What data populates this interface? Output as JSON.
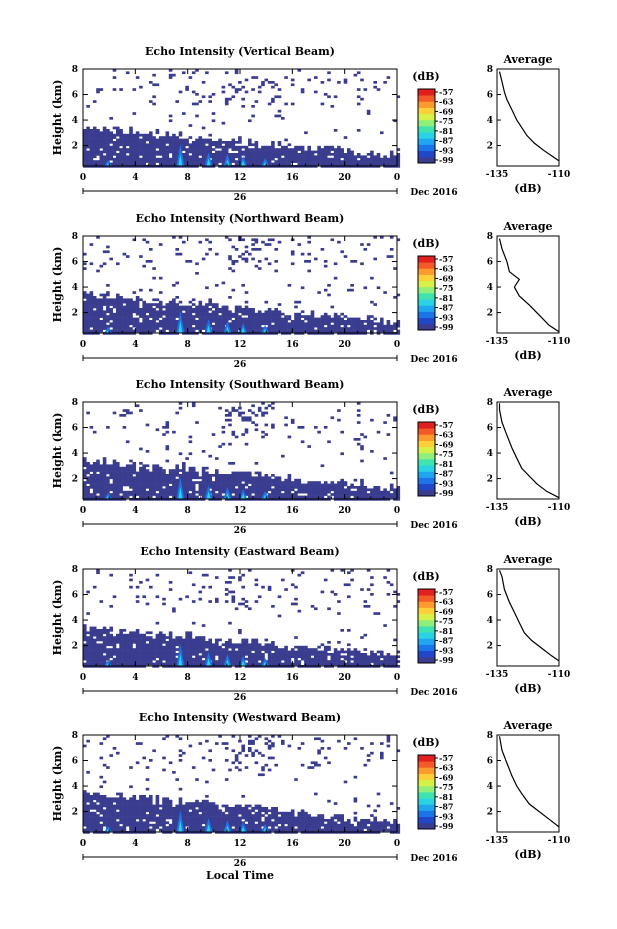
{
  "figure": {
    "time_label": "Local Time",
    "date_label": "Dec 2016",
    "day_label": "26",
    "height_label": "Height (km)",
    "colorbar_unit": "(dB)",
    "colorbar_ticks": [
      "-57",
      "-63",
      "-69",
      "-75",
      "-81",
      "-87",
      "-93",
      "-99"
    ],
    "avg_title": "Average",
    "avg_xlabel": "(dB)",
    "avg_xticks": [
      "-135",
      "-110"
    ],
    "palette": [
      "#3a3d8f",
      "#2246c8",
      "#1b74e8",
      "#20a6f0",
      "#2ad3e4",
      "#3fe3b0",
      "#8ef07a",
      "#d8f04a",
      "#fdd03a",
      "#fd9a2e",
      "#f35a27",
      "#e21f1f"
    ]
  },
  "chart_data": [
    {
      "type": "heatmap",
      "title": "Echo Intensity (Vertical Beam)",
      "x_ticks": [
        "0",
        "4",
        "8",
        "12",
        "16",
        "20",
        "0"
      ],
      "y_ticks": [
        "2",
        "4",
        "6",
        "8"
      ],
      "xlim": [
        0,
        24
      ],
      "ylim": [
        0.4,
        8
      ],
      "colorbar_range": [
        -99,
        -57
      ],
      "average_profile": {
        "xlim": [
          -135,
          -110
        ],
        "ylim": [
          0.4,
          8
        ],
        "points": [
          [
            -110,
            0.8
          ],
          [
            -113,
            1.2
          ],
          [
            -116,
            1.6
          ],
          [
            -120,
            2.2
          ],
          [
            -123,
            2.8
          ],
          [
            -125,
            3.4
          ],
          [
            -127,
            4.0
          ],
          [
            -129,
            4.8
          ],
          [
            -131,
            5.6
          ],
          [
            -132,
            6.2
          ],
          [
            -133,
            7.0
          ],
          [
            -134,
            7.8
          ]
        ]
      }
    },
    {
      "type": "heatmap",
      "title": "Echo Intensity (Northward Beam)",
      "x_ticks": [
        "0",
        "4",
        "8",
        "12",
        "16",
        "20",
        "0"
      ],
      "y_ticks": [
        "2",
        "4",
        "6",
        "8"
      ],
      "xlim": [
        0,
        24
      ],
      "ylim": [
        0.4,
        8
      ],
      "colorbar_range": [
        -99,
        -57
      ],
      "average_profile": {
        "xlim": [
          -135,
          -110
        ],
        "ylim": [
          0.4,
          8
        ],
        "points": [
          [
            -110,
            0.5
          ],
          [
            -114,
            1.0
          ],
          [
            -118,
            1.8
          ],
          [
            -122,
            2.6
          ],
          [
            -126,
            3.3
          ],
          [
            -128,
            4.0
          ],
          [
            -126,
            4.6
          ],
          [
            -130,
            5.2
          ],
          [
            -131,
            6.0
          ],
          [
            -133,
            7.0
          ],
          [
            -134,
            7.8
          ]
        ]
      }
    },
    {
      "type": "heatmap",
      "title": "Echo Intensity (Southward Beam)",
      "x_ticks": [
        "0",
        "4",
        "8",
        "12",
        "16",
        "20",
        "0"
      ],
      "y_ticks": [
        "2",
        "4",
        "6",
        "8"
      ],
      "xlim": [
        0,
        24
      ],
      "ylim": [
        0.4,
        8
      ],
      "colorbar_range": [
        -99,
        -57
      ],
      "average_profile": {
        "xlim": [
          -135,
          -110
        ],
        "ylim": [
          0.4,
          8
        ],
        "points": [
          [
            -110,
            0.5
          ],
          [
            -115,
            1.0
          ],
          [
            -119,
            1.6
          ],
          [
            -122,
            2.2
          ],
          [
            -125,
            2.8
          ],
          [
            -127,
            3.6
          ],
          [
            -129,
            4.4
          ],
          [
            -131,
            5.4
          ],
          [
            -133,
            6.4
          ],
          [
            -134,
            7.4
          ],
          [
            -134,
            7.9
          ]
        ]
      }
    },
    {
      "type": "heatmap",
      "title": "Echo Intensity (Eastward Beam)",
      "x_ticks": [
        "0",
        "4",
        "8",
        "12",
        "16",
        "20",
        "0"
      ],
      "y_ticks": [
        "2",
        "4",
        "6",
        "8"
      ],
      "xlim": [
        0,
        24
      ],
      "ylim": [
        0.4,
        8
      ],
      "colorbar_range": [
        -99,
        -57
      ],
      "average_profile": {
        "xlim": [
          -135,
          -110
        ],
        "ylim": [
          0.4,
          8
        ],
        "points": [
          [
            -110,
            0.8
          ],
          [
            -113,
            1.2
          ],
          [
            -117,
            1.8
          ],
          [
            -121,
            2.4
          ],
          [
            -124,
            3.0
          ],
          [
            -126,
            3.8
          ],
          [
            -128,
            4.6
          ],
          [
            -130,
            5.4
          ],
          [
            -132,
            6.4
          ],
          [
            -133,
            7.4
          ],
          [
            -134,
            7.9
          ]
        ]
      }
    },
    {
      "type": "heatmap",
      "title": "Echo Intensity (Westward Beam)",
      "x_ticks": [
        "0",
        "4",
        "8",
        "12",
        "16",
        "20",
        "0"
      ],
      "y_ticks": [
        "2",
        "4",
        "6",
        "8"
      ],
      "xlim": [
        0,
        24
      ],
      "ylim": [
        0.4,
        8
      ],
      "colorbar_range": [
        -99,
        -57
      ],
      "average_profile": {
        "xlim": [
          -135,
          -110
        ],
        "ylim": [
          0.4,
          8
        ],
        "points": [
          [
            -110,
            0.8
          ],
          [
            -114,
            1.4
          ],
          [
            -118,
            2.0
          ],
          [
            -122,
            2.6
          ],
          [
            -125,
            3.4
          ],
          [
            -127,
            4.0
          ],
          [
            -129,
            4.8
          ],
          [
            -131,
            5.8
          ],
          [
            -133,
            6.8
          ],
          [
            -134,
            7.9
          ]
        ]
      }
    }
  ]
}
